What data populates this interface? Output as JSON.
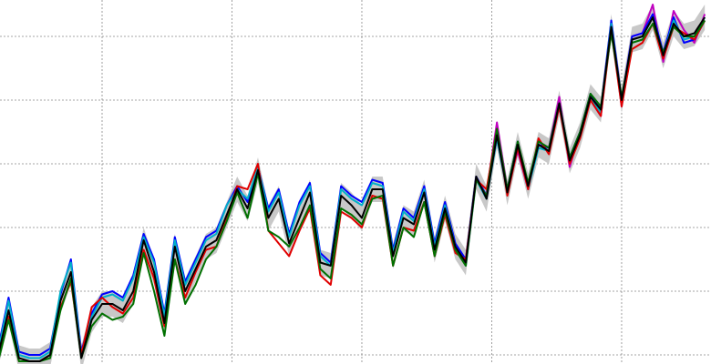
{
  "chart_data": {
    "type": "line",
    "x": [
      1880,
      1882,
      1884,
      1886,
      1888,
      1890,
      1892,
      1894,
      1896,
      1898,
      1900,
      1902,
      1904,
      1906,
      1908,
      1910,
      1912,
      1914,
      1916,
      1918,
      1920,
      1922,
      1924,
      1926,
      1928,
      1930,
      1932,
      1934,
      1936,
      1938,
      1940,
      1942,
      1944,
      1946,
      1948,
      1950,
      1952,
      1954,
      1956,
      1958,
      1960,
      1962,
      1964,
      1966,
      1968,
      1970,
      1972,
      1974,
      1976,
      1978,
      1980,
      1982,
      1984,
      1986,
      1988,
      1990,
      1992,
      1994,
      1996,
      1998,
      2000,
      2002,
      2004,
      2006,
      2008,
      2010,
      2012,
      2014,
      2016
    ],
    "xlim": [
      1880.35,
      2017.2
    ],
    "xticks": [
      1900,
      1925,
      1950,
      1975,
      2000
    ],
    "ylim": [
      -0.4286,
      0.7143
    ],
    "yticks": [
      -0.4,
      -0.2,
      0,
      0.2,
      0.4,
      0.6
    ],
    "grid": true,
    "band": {
      "color": "#c8c8c8",
      "upper": [
        -0.36,
        -0.22,
        -0.37,
        -0.38,
        -0.38,
        -0.36,
        -0.19,
        -0.1,
        -0.37,
        -0.25,
        -0.2,
        -0.2,
        -0.22,
        -0.16,
        0.0,
        -0.1,
        -0.26,
        -0.02,
        -0.16,
        -0.09,
        -0.02,
        0.0,
        0.08,
        0.16,
        0.1,
        0.22,
        0.07,
        0.13,
        -0.01,
        0.07,
        0.15,
        -0.07,
        -0.08,
        0.14,
        0.11,
        0.07,
        0.16,
        0.16,
        -0.05,
        0.07,
        0.05,
        0.15,
        -0.03,
        0.1,
        -0.02,
        -0.07,
        0.2,
        0.13,
        0.33,
        0.15,
        0.3,
        0.17,
        0.3,
        0.28,
        0.43,
        0.25,
        0.33,
        0.45,
        0.41,
        0.67,
        0.44,
        0.63,
        0.64,
        0.7,
        0.58,
        0.68,
        0.64,
        0.65,
        0.7
      ],
      "lower": [
        -0.44,
        -0.3,
        -0.45,
        -0.46,
        -0.46,
        -0.44,
        -0.27,
        -0.18,
        -0.45,
        -0.33,
        -0.28,
        -0.28,
        -0.3,
        -0.24,
        -0.08,
        -0.18,
        -0.34,
        -0.1,
        -0.24,
        -0.17,
        -0.1,
        -0.08,
        0.0,
        0.08,
        0.02,
        0.14,
        -0.01,
        0.05,
        -0.09,
        -0.01,
        0.07,
        -0.15,
        -0.16,
        0.06,
        0.03,
        -0.01,
        0.08,
        0.08,
        -0.13,
        -0.01,
        -0.03,
        0.07,
        -0.11,
        0.02,
        -0.1,
        -0.15,
        0.12,
        0.05,
        0.25,
        0.07,
        0.22,
        0.09,
        0.22,
        0.2,
        0.35,
        0.17,
        0.25,
        0.37,
        0.33,
        0.59,
        0.36,
        0.55,
        0.56,
        0.62,
        0.5,
        0.6,
        0.56,
        0.57,
        0.62
      ]
    },
    "series": [
      {
        "color": "#c000c0",
        "values": [
          null,
          null,
          null,
          null,
          null,
          null,
          null,
          null,
          null,
          null,
          null,
          null,
          null,
          null,
          null,
          null,
          null,
          null,
          null,
          null,
          null,
          null,
          null,
          null,
          null,
          null,
          null,
          null,
          null,
          null,
          null,
          null,
          null,
          null,
          null,
          null,
          null,
          null,
          null,
          null,
          null,
          null,
          null,
          null,
          null,
          null,
          null,
          0.11,
          0.33,
          0.12,
          0.24,
          0.12,
          0.27,
          0.25,
          0.41,
          0.19,
          0.3,
          0.4,
          0.35,
          0.64,
          0.38,
          0.6,
          0.61,
          0.7,
          0.52,
          0.68,
          0.62,
          0.58,
          0.67
        ]
      },
      {
        "color": "#0000ff",
        "values": [
          -0.38,
          -0.22,
          -0.39,
          -0.4,
          -0.4,
          -0.38,
          -0.21,
          -0.1,
          -0.39,
          -0.27,
          -0.21,
          -0.2,
          -0.22,
          -0.15,
          -0.02,
          -0.1,
          -0.27,
          -0.03,
          -0.17,
          -0.1,
          -0.03,
          -0.01,
          0.07,
          0.13,
          0.08,
          0.19,
          0.06,
          0.12,
          -0.02,
          0.08,
          0.14,
          -0.08,
          -0.11,
          0.13,
          0.1,
          0.08,
          0.15,
          0.14,
          -0.07,
          0.06,
          0.03,
          0.13,
          -0.05,
          0.08,
          -0.05,
          -0.1,
          0.16,
          0.1,
          0.28,
          0.12,
          0.27,
          0.13,
          0.26,
          0.25,
          0.39,
          0.22,
          0.3,
          0.42,
          0.37,
          0.65,
          0.4,
          0.6,
          0.61,
          0.67,
          0.55,
          0.66,
          0.58,
          0.59,
          0.65
        ]
      },
      {
        "color": "#00b0c8",
        "values": [
          -0.39,
          -0.23,
          -0.4,
          -0.41,
          -0.41,
          -0.39,
          -0.2,
          -0.11,
          -0.4,
          -0.28,
          -0.22,
          -0.21,
          -0.23,
          -0.16,
          -0.03,
          -0.11,
          -0.28,
          -0.04,
          -0.18,
          -0.11,
          -0.04,
          -0.02,
          0.07,
          0.12,
          0.09,
          0.19,
          0.05,
          0.11,
          -0.03,
          0.07,
          0.13,
          -0.09,
          -0.12,
          0.12,
          0.09,
          0.07,
          0.14,
          0.13,
          -0.08,
          0.05,
          0.02,
          0.12,
          -0.06,
          0.07,
          -0.06,
          -0.12,
          0.15,
          0.09,
          0.28,
          0.11,
          0.26,
          0.12,
          0.25,
          0.24,
          0.38,
          0.21,
          0.29,
          0.41,
          0.36,
          0.64,
          0.39,
          0.59,
          0.6,
          0.66,
          0.54,
          0.65,
          0.59,
          0.6,
          0.66
        ]
      },
      {
        "color": "#e00000",
        "values": [
          -0.41,
          -0.28,
          -0.42,
          -0.42,
          -0.42,
          -0.4,
          -0.25,
          -0.17,
          -0.4,
          -0.25,
          -0.22,
          -0.25,
          -0.27,
          -0.22,
          -0.07,
          -0.16,
          -0.31,
          -0.1,
          -0.22,
          -0.14,
          -0.07,
          -0.06,
          0.03,
          0.13,
          0.12,
          0.2,
          -0.01,
          -0.05,
          -0.09,
          -0.01,
          0.06,
          -0.15,
          -0.18,
          0.05,
          0.03,
          0.0,
          0.1,
          0.09,
          -0.12,
          0.0,
          -0.01,
          0.08,
          -0.09,
          0.04,
          -0.08,
          -0.1,
          0.15,
          0.12,
          0.31,
          0.1,
          0.25,
          0.12,
          0.28,
          0.23,
          0.38,
          0.2,
          0.28,
          0.4,
          0.35,
          0.62,
          0.38,
          0.56,
          0.58,
          0.64,
          0.53,
          0.63,
          0.61,
          0.59,
          0.65
        ]
      },
      {
        "color": "#007000",
        "values": [
          -0.42,
          -0.29,
          -0.42,
          -0.42,
          -0.42,
          -0.41,
          -0.26,
          -0.16,
          -0.41,
          -0.31,
          -0.27,
          -0.29,
          -0.28,
          -0.24,
          -0.08,
          -0.2,
          -0.34,
          -0.1,
          -0.24,
          -0.18,
          -0.1,
          -0.06,
          0.02,
          0.11,
          0.03,
          0.17,
          -0.01,
          -0.03,
          -0.06,
          0.0,
          0.07,
          -0.13,
          -0.16,
          0.06,
          0.04,
          0.01,
          0.09,
          0.1,
          -0.12,
          0.0,
          -0.03,
          0.08,
          -0.09,
          0.05,
          -0.07,
          -0.12,
          0.15,
          0.1,
          0.31,
          0.12,
          0.27,
          0.14,
          0.27,
          0.25,
          0.39,
          0.22,
          0.3,
          0.42,
          0.38,
          0.61,
          0.41,
          0.58,
          0.59,
          0.64,
          0.55,
          0.63,
          0.6,
          0.6,
          0.65
        ]
      },
      {
        "color": "#000000",
        "values": [
          -0.4,
          -0.26,
          -0.41,
          -0.42,
          -0.42,
          -0.4,
          -0.23,
          -0.14,
          -0.41,
          -0.29,
          -0.24,
          -0.24,
          -0.26,
          -0.2,
          -0.04,
          -0.14,
          -0.3,
          -0.06,
          -0.2,
          -0.13,
          -0.06,
          -0.04,
          0.04,
          0.12,
          0.06,
          0.18,
          0.03,
          0.09,
          -0.05,
          0.03,
          0.11,
          -0.11,
          -0.12,
          0.1,
          0.07,
          0.03,
          0.12,
          0.12,
          -0.09,
          0.03,
          0.01,
          0.11,
          -0.07,
          0.06,
          -0.06,
          -0.11,
          0.16,
          0.09,
          0.29,
          0.11,
          0.26,
          0.13,
          0.26,
          0.24,
          0.39,
          0.21,
          0.29,
          0.41,
          0.37,
          0.63,
          0.4,
          0.59,
          0.6,
          0.66,
          0.54,
          0.64,
          0.6,
          0.61,
          0.66
        ]
      }
    ]
  }
}
